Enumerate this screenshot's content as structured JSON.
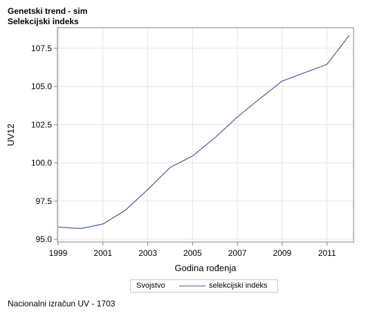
{
  "titles": [
    "Genetski trend - sim",
    "Selekcijski indeks"
  ],
  "legend": {
    "title": "Svojstvo",
    "entry": "selekcijski indeks"
  },
  "footnote": "Nacionalni izračun UV - 1703",
  "chart_data": {
    "type": "line",
    "title": "Genetski trend - sim",
    "subtitle": "Selekcijski indeks",
    "xlabel": "Godina rođenja",
    "ylabel": "UV12",
    "x": [
      1999,
      2000,
      2001,
      2002,
      2003,
      2004,
      2005,
      2006,
      2007,
      2008,
      2009,
      2010,
      2011,
      2012
    ],
    "series": [
      {
        "name": "selekcijski indeks",
        "values": [
          95.8,
          95.7,
          96.0,
          96.9,
          98.25,
          99.7,
          100.45,
          101.65,
          103.0,
          104.2,
          105.35,
          105.9,
          106.45,
          108.35
        ],
        "color": "#4a5a9a"
      }
    ],
    "xlim": [
      1999,
      2012
    ],
    "ylim": [
      95.0,
      108.35
    ],
    "xticks": [
      1999,
      2001,
      2003,
      2005,
      2007,
      2009,
      2011
    ],
    "xtick_labels": [
      "1999",
      "2001",
      "2003",
      "2005",
      "2007",
      "2009",
      "2011"
    ],
    "yticks": [
      95.0,
      97.5,
      100.0,
      102.5,
      105.0,
      107.5
    ],
    "ytick_labels": [
      "95.0",
      "97.5",
      "100.0",
      "102.5",
      "105.0",
      "107.5"
    ],
    "grid": true,
    "legend_position": "bottom"
  }
}
